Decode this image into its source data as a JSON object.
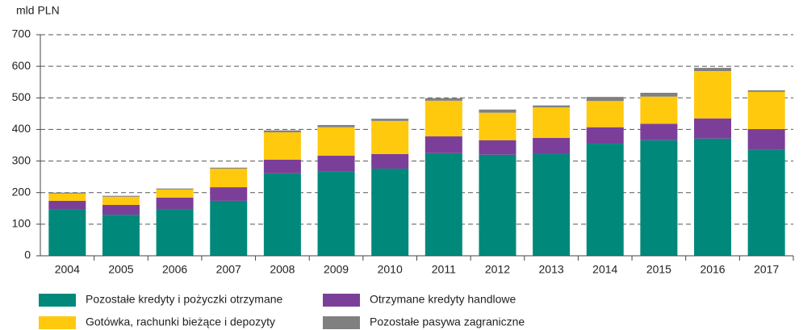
{
  "chart_data": {
    "type": "stacked_bar",
    "y_label": "mld PLN",
    "categories": [
      "2004",
      "2005",
      "2006",
      "2007",
      "2008",
      "2009",
      "2010",
      "2011",
      "2012",
      "2013",
      "2014",
      "2015",
      "2016",
      "2017"
    ],
    "series": [
      {
        "name": "Pozostałe kredyty i pożyczki otrzymane",
        "color": "#00897a",
        "values": [
          148,
          130,
          148,
          174,
          261,
          268,
          276,
          325,
          320,
          322,
          355,
          366,
          371,
          335
        ]
      },
      {
        "name": "Otrzymane kredyty handlowe",
        "color": "#7b3f99",
        "values": [
          26,
          31,
          36,
          43,
          43,
          49,
          46,
          53,
          46,
          51,
          52,
          52,
          64,
          66
        ]
      },
      {
        "name": "Gotówka, rachunki bieżące i depozyty",
        "color": "#ffc90e",
        "values": [
          23,
          26,
          26,
          59,
          87,
          90,
          105,
          113,
          87,
          97,
          83,
          86,
          150,
          118
        ]
      },
      {
        "name": "Pozostałe pasywa zagraniczne",
        "color": "#808080",
        "values": [
          3,
          3,
          3,
          3,
          6,
          7,
          7,
          8,
          10,
          6,
          13,
          12,
          10,
          5
        ]
      }
    ],
    "ylim": [
      0,
      700
    ],
    "yticks": [
      0,
      100,
      200,
      300,
      400,
      500,
      600,
      700
    ],
    "grid": true
  }
}
